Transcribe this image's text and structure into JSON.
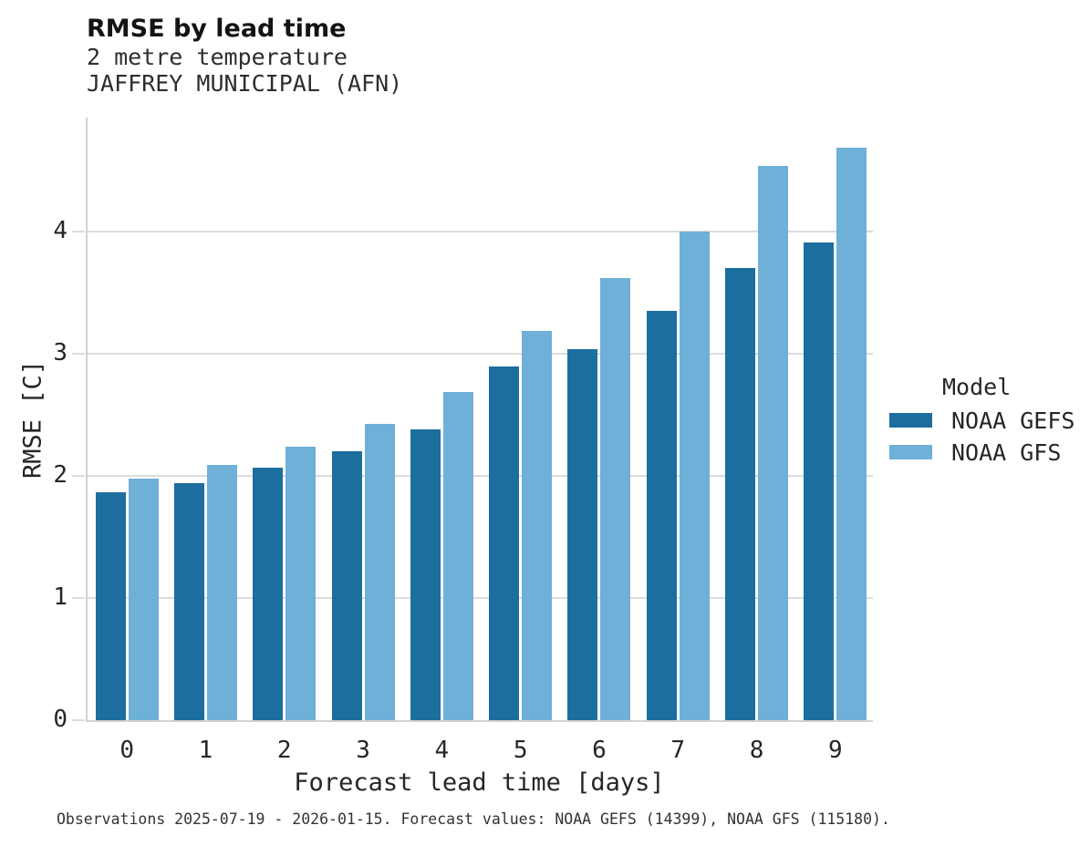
{
  "header": {
    "title": "RMSE by lead time",
    "subtitle_variable": "2 metre temperature",
    "subtitle_station": "JAFFREY MUNICIPAL (AFN)"
  },
  "axes": {
    "xlabel": "Forecast lead time [days]",
    "ylabel": "RMSE [C]"
  },
  "legend": {
    "title": "Model",
    "items": [
      {
        "label": "NOAA GEFS",
        "color": "#1c6e9e"
      },
      {
        "label": "NOAA GFS",
        "color": "#6fb0d8"
      }
    ]
  },
  "caption": "Observations 2025-07-19 - 2026-01-15. Forecast values: NOAA GEFS (14399), NOAA GFS (115180).",
  "chart_data": {
    "type": "bar",
    "title": "RMSE by lead time",
    "subtitle": [
      "2 metre temperature",
      "JAFFREY MUNICIPAL (AFN)"
    ],
    "categories": [
      "0",
      "1",
      "2",
      "3",
      "4",
      "5",
      "6",
      "7",
      "8",
      "9"
    ],
    "series": [
      {
        "name": "NOAA GEFS",
        "color": "#1c6e9e",
        "values": [
          1.87,
          1.94,
          2.07,
          2.2,
          2.38,
          2.9,
          3.04,
          3.35,
          3.7,
          3.91
        ]
      },
      {
        "name": "NOAA GFS",
        "color": "#6fb0d8",
        "values": [
          1.98,
          2.09,
          2.24,
          2.43,
          2.69,
          3.19,
          3.62,
          4.0,
          4.54,
          4.69
        ]
      }
    ],
    "xlabel": "Forecast lead time [days]",
    "ylabel": "RMSE [C]",
    "ylim": [
      0,
      4.95
    ],
    "yticks": [
      0,
      1,
      2,
      3,
      4
    ],
    "grid": "horizontal",
    "legend_title": "Model",
    "legend_position": "right",
    "grid_color": "#dcdcdc",
    "spine_color": "#d2d2d2"
  }
}
